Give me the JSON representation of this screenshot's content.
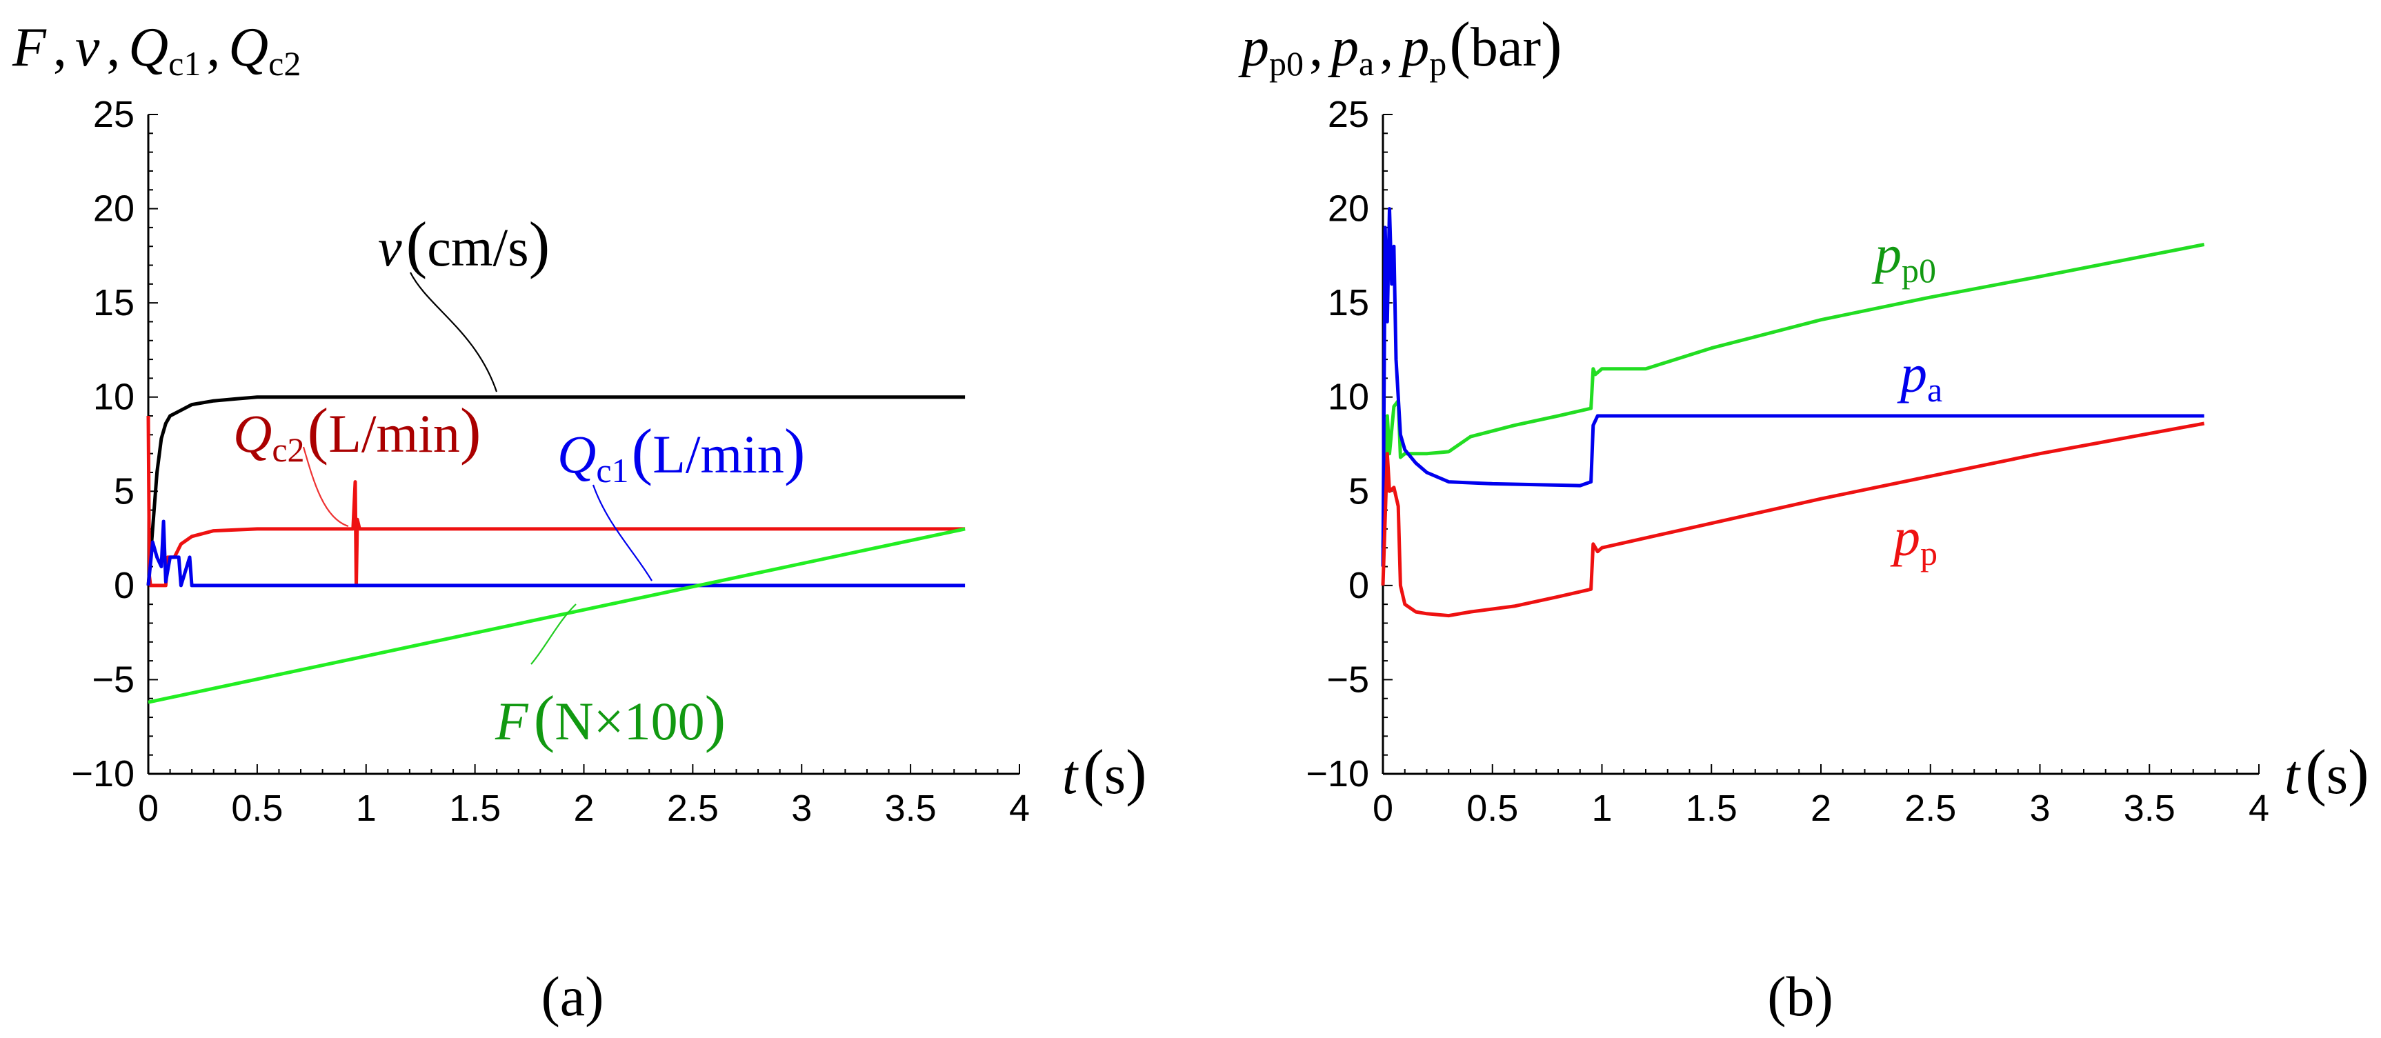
{
  "chart_data": [
    {
      "type": "line",
      "panel_label": "(a)",
      "y_axis_title": {
        "F": "F",
        "sep1": ",",
        "v": "v",
        "sep2": ",",
        "Q1": "Q",
        "Q1_sub": "c1",
        "sep3": ",",
        "Q2": "Q",
        "Q2_sub": "c2"
      },
      "xlabel": {
        "var": "t",
        "unit": "s"
      },
      "xlim": [
        0,
        4
      ],
      "ylim": [
        -10,
        25
      ],
      "x_ticks": [
        "0",
        "0.5",
        "1",
        "1.5",
        "2",
        "2.5",
        "3",
        "3.5",
        "4"
      ],
      "y_ticks": [
        "−10",
        "−5",
        "0",
        "5",
        "10",
        "15",
        "20",
        "25"
      ],
      "grid": false,
      "series": [
        {
          "name": "v",
          "color": "#000000",
          "x": [
            0,
            0.02,
            0.04,
            0.06,
            0.08,
            0.1,
            0.15,
            0.2,
            0.3,
            0.4,
            0.5,
            1.0,
            1.5,
            2.0,
            3.0,
            3.75
          ],
          "y": [
            0,
            3,
            6,
            7.8,
            8.6,
            9.0,
            9.3,
            9.6,
            9.8,
            9.9,
            10,
            10,
            10,
            10,
            10,
            10
          ]
        },
        {
          "name": "Q_c2",
          "color": "#ee1111",
          "x": [
            0,
            0.005,
            0.01,
            0.08,
            0.09,
            0.12,
            0.15,
            0.2,
            0.3,
            0.5,
            0.94,
            0.95,
            0.955,
            0.96,
            0.97,
            1.0,
            2.0,
            3.0,
            3.75
          ],
          "y": [
            9,
            0.5,
            0,
            0,
            1.5,
            1.5,
            2.2,
            2.6,
            2.9,
            3.0,
            3.0,
            5.5,
            0,
            3.5,
            3.0,
            3.0,
            3.0,
            3.0,
            3.0
          ]
        },
        {
          "name": "Q_c1",
          "color": "#0000ee",
          "x": [
            0,
            0.02,
            0.04,
            0.06,
            0.07,
            0.08,
            0.1,
            0.14,
            0.15,
            0.19,
            0.2,
            0.5,
            1.0,
            2.0,
            3.0,
            3.75
          ],
          "y": [
            0,
            2.3,
            1.5,
            1.0,
            3.4,
            0.2,
            1.5,
            1.5,
            0,
            1.5,
            0,
            0,
            0,
            0,
            0,
            0
          ]
        },
        {
          "name": "F",
          "color": "#22ee22",
          "x": [
            0,
            3.75
          ],
          "y": [
            -6.2,
            3.0
          ]
        }
      ],
      "annotations": {
        "v": {
          "var": "v",
          "unit": "cm/s"
        },
        "Q_c2": {
          "var": "Q",
          "sub": "c2",
          "unit": "L/min"
        },
        "Q_c1": {
          "var": "Q",
          "sub": "c1",
          "unit": "L/min"
        },
        "F": {
          "var": "F",
          "unit": "N×100"
        }
      },
      "annotation_colors": {
        "v": "#000000",
        "Q_c2": "#aa0000",
        "Q_c1": "#0000ee",
        "F": "#119911"
      }
    },
    {
      "type": "line",
      "panel_label": "(b)",
      "y_axis_title": {
        "p1": "p",
        "p1_sub": "p0",
        "sep1": ",",
        "p2": "p",
        "p2_sub": "a",
        "sep2": ",",
        "p3": "p",
        "p3_sub": "p",
        "unit": "bar"
      },
      "xlabel": {
        "var": "t",
        "unit": "s"
      },
      "xlim": [
        0,
        4
      ],
      "ylim": [
        -10,
        25
      ],
      "x_ticks": [
        "0",
        "0.5",
        "1",
        "1.5",
        "2",
        "2.5",
        "3",
        "3.5",
        "4"
      ],
      "y_ticks": [
        "−10",
        "−5",
        "0",
        "5",
        "10",
        "15",
        "20",
        "25"
      ],
      "grid": false,
      "series": [
        {
          "name": "p_p0",
          "color": "#22dd22",
          "x": [
            0,
            0.02,
            0.03,
            0.05,
            0.07,
            0.08,
            0.1,
            0.2,
            0.3,
            0.4,
            0.6,
            0.8,
            0.95,
            0.96,
            0.97,
            1.0,
            1.2,
            1.5,
            2.0,
            2.5,
            3.0,
            3.75
          ],
          "y": [
            2,
            9,
            7,
            9.5,
            9.8,
            6.8,
            7.0,
            7.0,
            7.1,
            7.9,
            8.5,
            9.0,
            9.4,
            11.5,
            11.2,
            11.5,
            11.5,
            12.6,
            14.1,
            15.3,
            16.4,
            18.1
          ]
        },
        {
          "name": "p_a",
          "color": "#0000ee",
          "x": [
            0,
            0.01,
            0.02,
            0.03,
            0.04,
            0.05,
            0.06,
            0.07,
            0.08,
            0.1,
            0.15,
            0.2,
            0.3,
            0.5,
            0.9,
            0.95,
            0.96,
            0.98,
            1.0,
            2.0,
            3.0,
            3.75
          ],
          "y": [
            1,
            19,
            14,
            20,
            16,
            18,
            12,
            10,
            8,
            7.2,
            6.5,
            6.0,
            5.5,
            5.4,
            5.3,
            5.5,
            8.5,
            9.0,
            9.0,
            9.0,
            9.0,
            9.0
          ]
        },
        {
          "name": "p_p",
          "color": "#ee1111",
          "x": [
            0,
            0.02,
            0.03,
            0.05,
            0.07,
            0.08,
            0.1,
            0.15,
            0.2,
            0.3,
            0.4,
            0.6,
            0.8,
            0.95,
            0.96,
            0.98,
            1.0,
            1.5,
            2.0,
            2.5,
            3.0,
            3.75
          ],
          "y": [
            0,
            7,
            5,
            5.2,
            4.2,
            0,
            -1,
            -1.4,
            -1.5,
            -1.6,
            -1.4,
            -1.1,
            -0.6,
            -0.2,
            2.2,
            1.8,
            2.0,
            3.3,
            4.6,
            5.8,
            7.0,
            8.6
          ]
        }
      ],
      "annotations": {
        "p_p0": {
          "var": "p",
          "sub": "p0"
        },
        "p_a": {
          "var": "p",
          "sub": "a"
        },
        "p_p": {
          "var": "p",
          "sub": "p"
        }
      },
      "annotation_colors": {
        "p_p0": "#119911",
        "p_a": "#0000ee",
        "p_p": "#ee1111"
      }
    }
  ]
}
